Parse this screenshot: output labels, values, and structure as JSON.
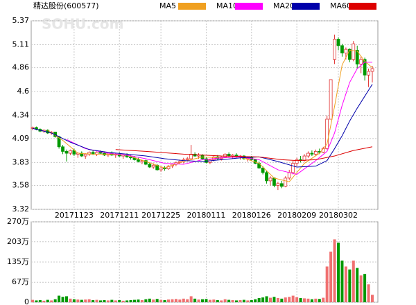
{
  "chart_data": {
    "type": "candlestick",
    "title": "精达股份(600577)",
    "watermark": "SOHU.com",
    "categories": [
      null,
      null,
      null,
      null,
      null,
      null,
      null,
      null,
      null,
      null,
      null,
      "20171123",
      null,
      null,
      null,
      null,
      null,
      null,
      null,
      null,
      null,
      null,
      null,
      "20171211",
      null,
      null,
      null,
      null,
      null,
      null,
      null,
      null,
      null,
      null,
      "20171225",
      null,
      null,
      null,
      null,
      null,
      null,
      null,
      null,
      null,
      null,
      null,
      "20180111",
      null,
      null,
      null,
      null,
      null,
      null,
      null,
      null,
      null,
      null,
      null,
      "20180126",
      null,
      null,
      null,
      null,
      null,
      null,
      null,
      null,
      null,
      null,
      null,
      "20180209",
      null,
      null,
      null,
      null,
      null,
      null,
      null,
      null,
      null,
      null,
      "20180302",
      null,
      null,
      null,
      null,
      null,
      null,
      null,
      null,
      null
    ],
    "candles": [
      [
        4.2,
        4.22,
        4.18,
        4.21
      ],
      [
        4.21,
        4.22,
        4.18,
        4.19
      ],
      [
        4.19,
        4.2,
        4.16,
        4.17
      ],
      [
        4.17,
        4.19,
        4.15,
        4.18
      ],
      [
        4.18,
        4.19,
        4.14,
        4.15
      ],
      [
        4.15,
        4.17,
        4.13,
        4.16
      ],
      [
        4.16,
        4.16,
        4.1,
        4.11
      ],
      [
        4.11,
        4.12,
        3.98,
        4.0
      ],
      [
        4.0,
        4.02,
        3.92,
        3.95
      ],
      [
        3.95,
        3.97,
        3.84,
        3.93
      ],
      [
        3.93,
        3.97,
        3.91,
        3.96
      ],
      [
        3.96,
        3.98,
        3.9,
        3.92
      ],
      [
        3.92,
        3.94,
        3.88,
        3.93
      ],
      [
        3.93,
        3.95,
        3.89,
        3.9
      ],
      [
        3.9,
        3.93,
        3.87,
        3.92
      ],
      [
        3.92,
        3.95,
        3.9,
        3.94
      ],
      [
        3.94,
        3.96,
        3.91,
        3.92
      ],
      [
        3.92,
        3.95,
        3.9,
        3.94
      ],
      [
        3.94,
        3.96,
        3.92,
        3.93
      ],
      [
        3.93,
        3.95,
        3.9,
        3.91
      ],
      [
        3.91,
        3.94,
        3.89,
        3.93
      ],
      [
        3.93,
        3.95,
        3.9,
        3.91
      ],
      [
        3.91,
        3.93,
        3.88,
        3.92
      ],
      [
        3.92,
        3.94,
        3.89,
        3.9
      ],
      [
        3.9,
        3.92,
        3.87,
        3.91
      ],
      [
        3.91,
        3.93,
        3.88,
        3.89
      ],
      [
        3.89,
        3.91,
        3.86,
        3.88
      ],
      [
        3.88,
        3.9,
        3.85,
        3.86
      ],
      [
        3.86,
        3.88,
        3.83,
        3.84
      ],
      [
        3.84,
        3.86,
        3.81,
        3.85
      ],
      [
        3.85,
        3.86,
        3.8,
        3.81
      ],
      [
        3.81,
        3.83,
        3.77,
        3.78
      ],
      [
        3.78,
        3.82,
        3.76,
        3.8
      ],
      [
        3.8,
        3.81,
        3.74,
        3.75
      ],
      [
        3.75,
        3.78,
        3.73,
        3.77
      ],
      [
        3.77,
        3.79,
        3.74,
        3.76
      ],
      [
        3.76,
        3.8,
        3.75,
        3.79
      ],
      [
        3.79,
        3.82,
        3.77,
        3.81
      ],
      [
        3.81,
        3.84,
        3.79,
        3.83
      ],
      [
        3.83,
        3.86,
        3.81,
        3.84
      ],
      [
        3.84,
        3.88,
        3.82,
        3.86
      ],
      [
        3.86,
        3.89,
        3.84,
        3.87
      ],
      [
        3.87,
        4.02,
        3.86,
        3.92
      ],
      [
        3.92,
        3.94,
        3.89,
        3.9
      ],
      [
        3.9,
        3.93,
        3.87,
        3.91
      ],
      [
        3.91,
        3.92,
        3.86,
        3.87
      ],
      [
        3.87,
        3.89,
        3.82,
        3.83
      ],
      [
        3.83,
        3.87,
        3.81,
        3.86
      ],
      [
        3.86,
        3.9,
        3.84,
        3.89
      ],
      [
        3.89,
        3.91,
        3.86,
        3.87
      ],
      [
        3.87,
        3.9,
        3.85,
        3.89
      ],
      [
        3.89,
        3.93,
        3.88,
        3.92
      ],
      [
        3.92,
        3.94,
        3.89,
        3.9
      ],
      [
        3.9,
        3.92,
        3.87,
        3.91
      ],
      [
        3.91,
        3.93,
        3.88,
        3.89
      ],
      [
        3.89,
        3.91,
        3.86,
        3.9
      ],
      [
        3.9,
        3.91,
        3.86,
        3.87
      ],
      [
        3.87,
        3.89,
        3.84,
        3.88
      ],
      [
        3.88,
        3.9,
        3.85,
        3.86
      ],
      [
        3.86,
        3.87,
        3.81,
        3.82
      ],
      [
        3.82,
        3.84,
        3.76,
        3.77
      ],
      [
        3.77,
        3.79,
        3.7,
        3.72
      ],
      [
        3.72,
        3.74,
        3.6,
        3.63
      ],
      [
        3.63,
        3.68,
        3.58,
        3.66
      ],
      [
        3.66,
        3.67,
        3.56,
        3.58
      ],
      [
        3.58,
        3.62,
        3.53,
        3.6
      ],
      [
        3.6,
        3.63,
        3.55,
        3.57
      ],
      [
        3.57,
        3.68,
        3.56,
        3.66
      ],
      [
        3.66,
        3.75,
        3.64,
        3.72
      ],
      [
        3.72,
        3.85,
        3.7,
        3.82
      ],
      [
        3.82,
        3.88,
        3.79,
        3.86
      ],
      [
        3.86,
        3.9,
        3.83,
        3.85
      ],
      [
        3.85,
        3.92,
        3.84,
        3.9
      ],
      [
        3.9,
        3.95,
        3.88,
        3.93
      ],
      [
        3.93,
        3.96,
        3.9,
        3.92
      ],
      [
        3.92,
        3.97,
        3.9,
        3.95
      ],
      [
        3.95,
        3.98,
        3.92,
        3.94
      ],
      [
        3.94,
        4.0,
        3.93,
        3.98
      ],
      [
        3.98,
        4.34,
        3.97,
        4.3
      ],
      [
        4.3,
        4.73,
        4.3,
        4.73
      ],
      [
        4.95,
        5.22,
        4.9,
        5.17
      ],
      [
        5.17,
        5.19,
        5.05,
        5.1
      ],
      [
        5.1,
        5.12,
        4.98,
        5.02
      ],
      [
        5.02,
        5.08,
        4.95,
        5.06
      ],
      [
        5.06,
        5.07,
        4.92,
        4.95
      ],
      [
        4.95,
        5.15,
        4.93,
        5.12
      ],
      [
        5.05,
        5.1,
        4.85,
        4.9
      ],
      [
        4.9,
        4.98,
        4.8,
        4.95
      ],
      [
        4.95,
        4.97,
        4.72,
        4.78
      ],
      [
        4.78,
        4.85,
        4.65,
        4.82
      ],
      [
        4.82,
        4.88,
        4.7,
        4.85
      ]
    ],
    "volume": [
      8,
      6,
      7,
      5,
      8,
      6,
      10,
      22,
      18,
      20,
      12,
      10,
      9,
      8,
      9,
      10,
      7,
      8,
      6,
      7,
      6,
      8,
      6,
      7,
      5,
      6,
      7,
      8,
      9,
      7,
      10,
      12,
      9,
      11,
      8,
      7,
      9,
      10,
      11,
      9,
      12,
      10,
      20,
      12,
      9,
      10,
      11,
      8,
      9,
      7,
      6,
      10,
      8,
      7,
      6,
      7,
      8,
      6,
      7,
      10,
      14,
      16,
      20,
      15,
      18,
      14,
      12,
      16,
      18,
      22,
      17,
      14,
      13,
      12,
      10,
      12,
      11,
      15,
      120,
      170,
      211,
      200,
      140,
      120,
      110,
      140,
      115,
      90,
      95,
      60,
      25
    ],
    "up_color": "#e03030",
    "down_color": "#009900",
    "vol_up_color": "#f07070",
    "ylim": [
      3.32,
      5.37
    ],
    "yticks": [
      3.32,
      3.58,
      3.83,
      4.09,
      4.34,
      4.6,
      4.86,
      5.11,
      5.37
    ],
    "volume_ylim": [
      0,
      270
    ],
    "volume_yticks": [
      0,
      {
        "value": 67,
        "label": "67万"
      },
      {
        "value": 135,
        "label": "135万"
      },
      {
        "value": 203,
        "label": "203万"
      },
      {
        "value": 270,
        "label": "270万"
      }
    ],
    "grid": true,
    "series": [
      {
        "name": "MA5",
        "color": "#f0a020",
        "x": [
          4,
          8,
          12,
          16,
          20,
          25,
          30,
          35,
          40,
          45,
          50,
          55,
          60,
          64,
          68,
          72,
          76,
          78,
          80,
          82,
          84,
          86,
          88,
          90
        ],
        "values": [
          4.18,
          4.07,
          3.93,
          3.92,
          3.92,
          3.91,
          3.84,
          3.77,
          3.84,
          3.89,
          3.88,
          3.89,
          3.82,
          3.66,
          3.62,
          3.82,
          3.93,
          4.03,
          4.44,
          4.89,
          5.05,
          5.04,
          4.93,
          4.86
        ]
      },
      {
        "name": "MA10",
        "color": "#ff00ff",
        "x": [
          9,
          14,
          20,
          25,
          30,
          35,
          40,
          45,
          50,
          55,
          60,
          65,
          70,
          75,
          78,
          80,
          82,
          84,
          86,
          88,
          90
        ],
        "values": [
          4.08,
          3.98,
          3.93,
          3.91,
          3.87,
          3.82,
          3.81,
          3.86,
          3.88,
          3.89,
          3.86,
          3.75,
          3.7,
          3.85,
          3.95,
          4.15,
          4.45,
          4.7,
          4.85,
          4.92,
          4.92
        ]
      },
      {
        "name": "MA20",
        "color": "#0000aa",
        "x": [
          0,
          5,
          10,
          15,
          20,
          25,
          30,
          35,
          40,
          45,
          50,
          55,
          60,
          65,
          70,
          75,
          78,
          80,
          82,
          84,
          86,
          88,
          90
        ],
        "values": [
          4.2,
          4.15,
          4.05,
          3.97,
          3.94,
          3.92,
          3.9,
          3.87,
          3.85,
          3.84,
          3.86,
          3.88,
          3.89,
          3.84,
          3.78,
          3.79,
          3.85,
          3.98,
          4.12,
          4.28,
          4.42,
          4.55,
          4.68
        ]
      },
      {
        "name": "MA60",
        "color": "#dd0000",
        "x": [
          22,
          30,
          40,
          50,
          60,
          66,
          70,
          75,
          80,
          85,
          90
        ],
        "values": [
          3.97,
          3.95,
          3.92,
          3.9,
          3.89,
          3.86,
          3.85,
          3.86,
          3.9,
          3.96,
          4.0
        ]
      }
    ]
  }
}
